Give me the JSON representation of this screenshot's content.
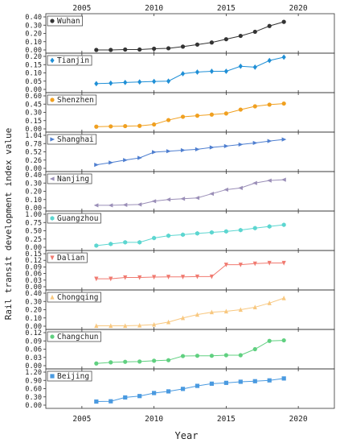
{
  "chart_data": {
    "type": "line",
    "ylabel": "Rail transit development index value",
    "xlabel": "Year",
    "x": [
      2006,
      2007,
      2008,
      2009,
      2010,
      2011,
      2012,
      2013,
      2014,
      2015,
      2016,
      2017,
      2018,
      2019
    ],
    "xlim": [
      2002.5,
      2022.5
    ],
    "xticks": [
      2005,
      2010,
      2015,
      2020
    ],
    "panels": [
      {
        "name": "Wuhan",
        "color": "#333333",
        "marker": "circle",
        "ylim": [
          0.0,
          0.4
        ],
        "yticks": [
          "0.00",
          "0.10",
          "0.20",
          "0.30",
          "0.40"
        ],
        "ytick_values": [
          0,
          0.1,
          0.2,
          0.3,
          0.4
        ],
        "values": [
          0.0,
          0.0,
          0.005,
          0.005,
          0.015,
          0.02,
          0.04,
          0.065,
          0.09,
          0.13,
          0.17,
          0.22,
          0.29,
          0.34
        ]
      },
      {
        "name": "Tianjin",
        "color": "#1f8fd6",
        "marker": "diamond",
        "ylim": [
          0.0,
          0.2
        ],
        "yticks": [
          "0.00",
          "0.05",
          "0.10",
          "0.15",
          "0.20"
        ],
        "ytick_values": [
          0,
          0.05,
          0.1,
          0.15,
          0.2
        ],
        "values": [
          0.035,
          0.038,
          0.042,
          0.045,
          0.048,
          0.05,
          0.095,
          0.105,
          0.11,
          0.11,
          0.14,
          0.135,
          0.175,
          0.195
        ]
      },
      {
        "name": "Shenzhen",
        "color": "#f0a020",
        "marker": "circle",
        "ylim": [
          0.0,
          0.6
        ],
        "yticks": [
          "0.00",
          "0.15",
          "0.30",
          "0.45",
          "0.60"
        ],
        "ytick_values": [
          0,
          0.15,
          0.3,
          0.45,
          0.6
        ],
        "values": [
          0.04,
          0.045,
          0.05,
          0.055,
          0.08,
          0.16,
          0.22,
          0.24,
          0.26,
          0.28,
          0.35,
          0.41,
          0.44,
          0.46
        ]
      },
      {
        "name": "Shanghai",
        "color": "#4f7fd0",
        "marker": "triangle-right",
        "ylim": [
          0.0,
          1.04
        ],
        "yticks": [
          "0.00",
          "0.26",
          "0.52",
          "0.78",
          "1.04"
        ],
        "ytick_values": [
          0,
          0.26,
          0.52,
          0.78,
          1.04
        ],
        "values": [
          0.11,
          0.18,
          0.26,
          0.33,
          0.51,
          0.54,
          0.57,
          0.6,
          0.66,
          0.7,
          0.75,
          0.8,
          0.86,
          0.91
        ]
      },
      {
        "name": "Nanjing",
        "color": "#9b8fb8",
        "marker": "triangle-left",
        "ylim": [
          0.0,
          0.4
        ],
        "yticks": [
          "0.00",
          "0.10",
          "0.20",
          "0.30",
          "0.40"
        ],
        "ytick_values": [
          0,
          0.1,
          0.2,
          0.3,
          0.4
        ],
        "values": [
          0.03,
          0.03,
          0.035,
          0.04,
          0.08,
          0.1,
          0.11,
          0.12,
          0.17,
          0.22,
          0.24,
          0.3,
          0.33,
          0.34
        ]
      },
      {
        "name": "Guangzhou",
        "color": "#5cd6d0",
        "marker": "hexagon",
        "ylim": [
          0.0,
          1.0
        ],
        "yticks": [
          "0.00",
          "0.25",
          "0.50",
          "0.75",
          "1.00"
        ],
        "ytick_values": [
          0,
          0.25,
          0.5,
          0.75,
          1.0
        ],
        "values": [
          0.05,
          0.1,
          0.15,
          0.15,
          0.28,
          0.35,
          0.38,
          0.42,
          0.45,
          0.48,
          0.52,
          0.58,
          0.63,
          0.68
        ]
      },
      {
        "name": "Dalian",
        "color": "#f07a70",
        "marker": "triangle-down",
        "ylim": [
          0.0,
          0.15
        ],
        "yticks": [
          "0.00",
          "0.03",
          "0.06",
          "0.09",
          "0.12",
          "0.15"
        ],
        "ytick_values": [
          0,
          0.03,
          0.06,
          0.09,
          0.12,
          0.15
        ],
        "values": [
          0.036,
          0.036,
          0.042,
          0.042,
          0.044,
          0.045,
          0.045,
          0.046,
          0.046,
          0.1,
          0.1,
          0.105,
          0.108,
          0.108
        ]
      },
      {
        "name": "Chongqing",
        "color": "#f8c880",
        "marker": "triangle-up",
        "ylim": [
          0.0,
          0.4
        ],
        "yticks": [
          "0.00",
          "0.10",
          "0.20",
          "0.30",
          "0.40"
        ],
        "ytick_values": [
          0,
          0.1,
          0.2,
          0.3,
          0.4
        ],
        "values": [
          0.005,
          0.005,
          0.005,
          0.01,
          0.02,
          0.05,
          0.1,
          0.14,
          0.17,
          0.18,
          0.2,
          0.23,
          0.28,
          0.34
        ]
      },
      {
        "name": "Changchun",
        "color": "#60d080",
        "marker": "circle",
        "ylim": [
          0.0,
          0.12
        ],
        "yticks": [
          "0.00",
          "0.03",
          "0.06",
          "0.09",
          "0.12"
        ],
        "ytick_values": [
          0,
          0.03,
          0.06,
          0.09,
          0.12
        ],
        "values": [
          0.008,
          0.012,
          0.014,
          0.015,
          0.018,
          0.02,
          0.035,
          0.036,
          0.036,
          0.038,
          0.038,
          0.06,
          0.09,
          0.092
        ]
      },
      {
        "name": "Beijing",
        "color": "#4a9ae0",
        "marker": "square",
        "ylim": [
          0.0,
          1.2
        ],
        "yticks": [
          "0.00",
          "0.30",
          "0.60",
          "0.90",
          "1.20"
        ],
        "ytick_values": [
          0,
          0.3,
          0.6,
          0.9,
          1.2
        ],
        "values": [
          0.13,
          0.14,
          0.28,
          0.33,
          0.44,
          0.5,
          0.59,
          0.7,
          0.78,
          0.81,
          0.85,
          0.87,
          0.9,
          0.97
        ]
      }
    ]
  }
}
